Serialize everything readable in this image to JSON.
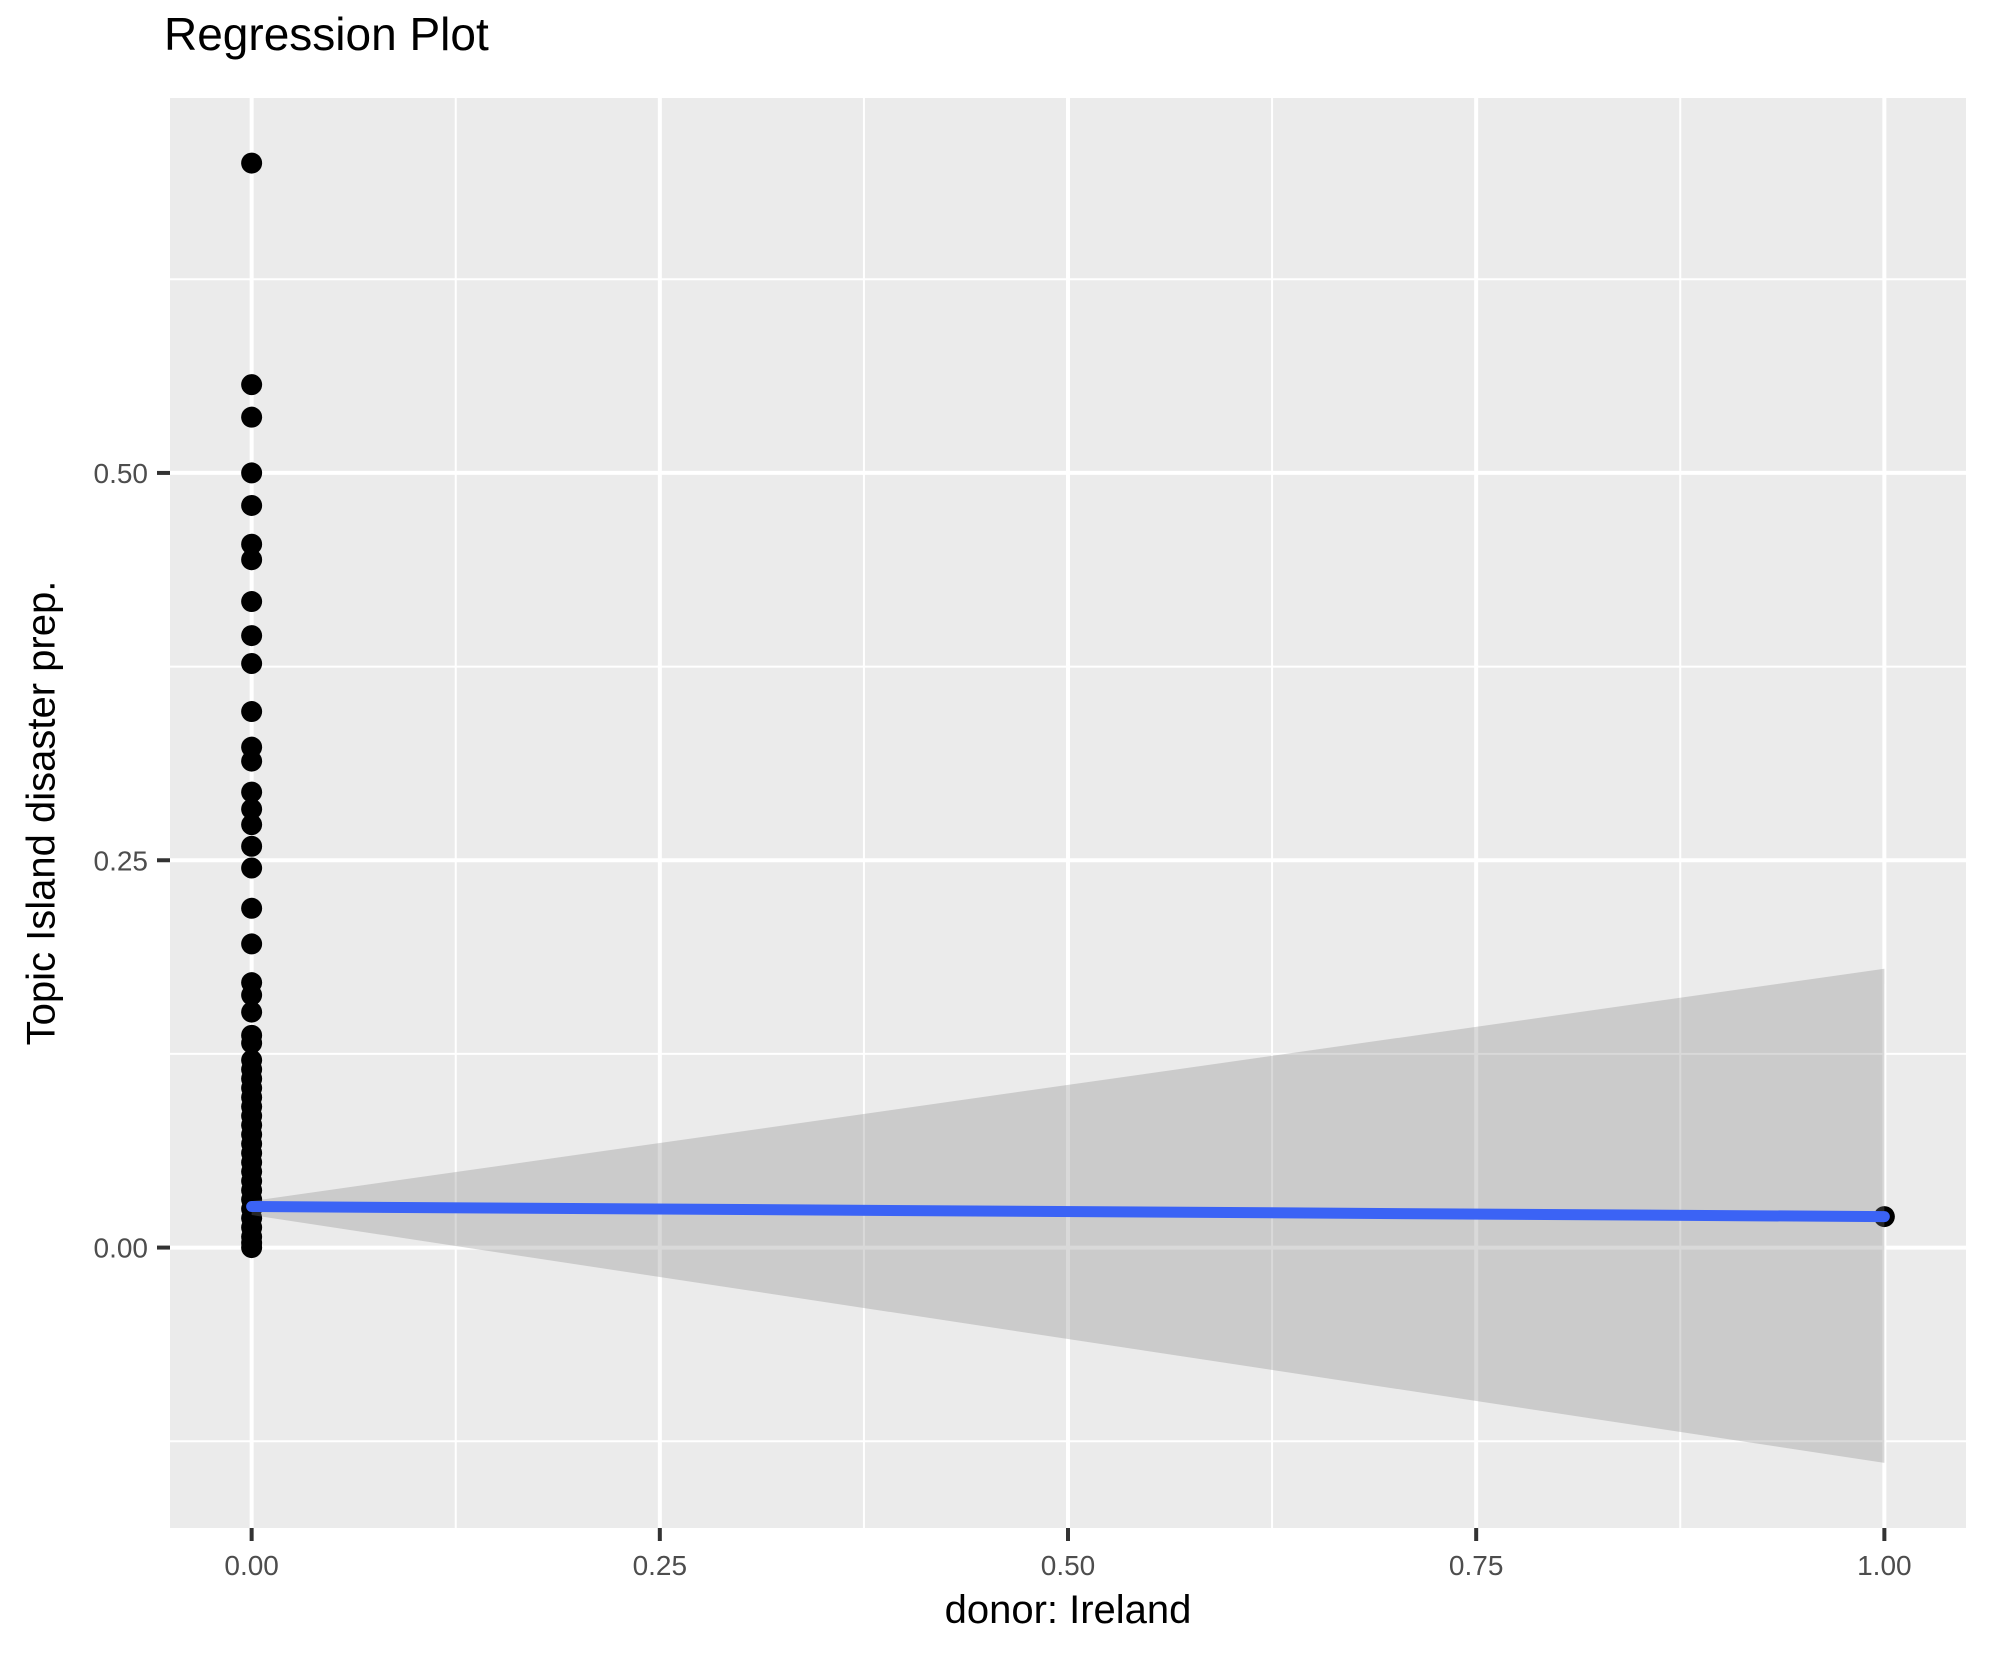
{
  "title": "Regression Plot",
  "chart_data": {
    "type": "scatter",
    "title": "Regression Plot",
    "xlabel": "donor: Ireland",
    "ylabel": "Topic Island disaster prep.",
    "xlim": [
      -0.05,
      1.05
    ],
    "ylim": [
      -0.181,
      0.742
    ],
    "grid": true,
    "legend": false,
    "x_ticks": {
      "values": [
        0.0,
        0.25,
        0.5,
        0.75,
        1.0
      ],
      "labels": [
        "0.00",
        "0.25",
        "0.50",
        "0.75",
        "1.00"
      ]
    },
    "x_minor_ticks": [
      0.125,
      0.375,
      0.625,
      0.875
    ],
    "y_ticks": {
      "values": [
        0.0,
        0.25,
        0.5
      ],
      "labels": [
        "0.00",
        "0.25",
        "0.50"
      ]
    },
    "y_minor_ticks": [
      -0.125,
      0.125,
      0.375,
      0.625
    ],
    "points": [
      [
        0,
        0.7
      ],
      [
        0,
        0.557
      ],
      [
        0,
        0.536
      ],
      [
        0,
        0.5
      ],
      [
        0,
        0.479
      ],
      [
        0,
        0.454
      ],
      [
        0,
        0.444
      ],
      [
        0,
        0.417
      ],
      [
        0,
        0.395
      ],
      [
        0,
        0.377
      ],
      [
        0,
        0.346
      ],
      [
        0,
        0.323
      ],
      [
        0,
        0.314
      ],
      [
        0,
        0.294
      ],
      [
        0,
        0.283
      ],
      [
        0,
        0.273
      ],
      [
        0,
        0.259
      ],
      [
        0,
        0.245
      ],
      [
        0,
        0.219
      ],
      [
        0,
        0.196
      ],
      [
        0,
        0.171
      ],
      [
        0,
        0.163
      ],
      [
        0,
        0.152
      ],
      [
        0,
        0.137
      ],
      [
        0,
        0.132
      ],
      [
        0,
        0.121
      ],
      [
        0,
        0.115
      ],
      [
        0,
        0.109
      ],
      [
        0,
        0.103
      ],
      [
        0,
        0.097
      ],
      [
        0,
        0.091
      ],
      [
        0,
        0.085
      ],
      [
        0,
        0.079
      ],
      [
        0,
        0.073
      ],
      [
        0,
        0.067
      ],
      [
        0,
        0.061
      ],
      [
        0,
        0.055
      ],
      [
        0,
        0.049
      ],
      [
        0,
        0.043
      ],
      [
        0,
        0.037
      ],
      [
        0,
        0.031
      ],
      [
        0,
        0.025
      ],
      [
        0,
        0.019
      ],
      [
        0,
        0.013
      ],
      [
        0,
        0.007
      ],
      [
        0,
        0.003
      ],
      [
        0,
        0.0
      ],
      [
        1,
        0.02
      ]
    ],
    "regression_line": {
      "x": [
        0,
        1
      ],
      "y": [
        0.0265,
        0.02
      ]
    },
    "confidence_band": {
      "x": [
        0,
        1
      ],
      "upper": [
        0.03,
        0.18
      ],
      "lower": [
        0.021,
        -0.139
      ]
    },
    "colors": {
      "line": "#3B63F5",
      "band": "rgba(128,128,128,0.30)",
      "point": "#000000",
      "panel_bg": "#EBEBEB",
      "grid": "#FFFFFF",
      "tick": "#333333",
      "tick_label": "#4D4D4D",
      "title": "#000000"
    }
  }
}
